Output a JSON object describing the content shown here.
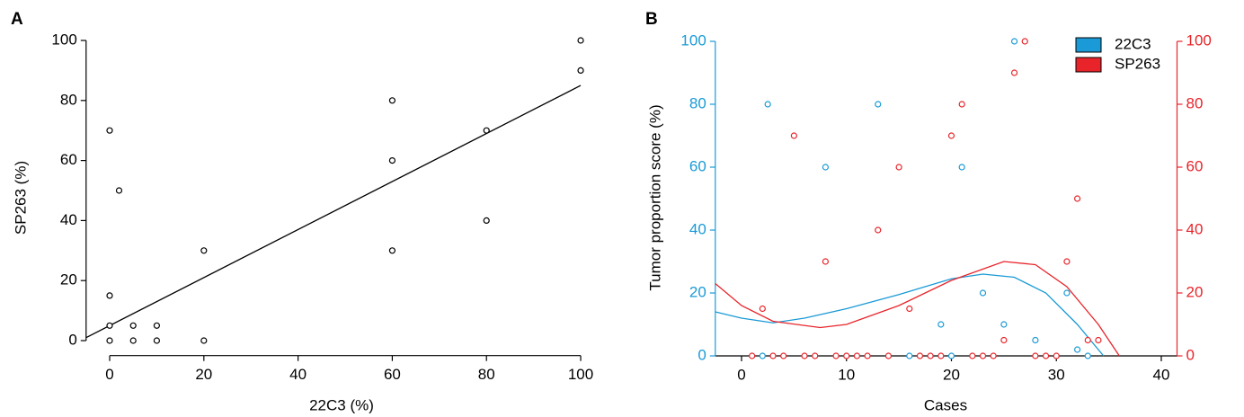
{
  "chart_data": [
    {
      "type": "scatter",
      "panel_label": "A",
      "x_label": "22C3 (%)",
      "y_label": "SP263 (%)",
      "x": [
        0,
        0,
        0,
        0,
        2,
        5,
        5,
        10,
        10,
        20,
        20,
        60,
        60,
        60,
        80,
        80,
        100,
        100
      ],
      "values": [
        0,
        5,
        15,
        70,
        50,
        5,
        0,
        5,
        0,
        30,
        0,
        80,
        60,
        30,
        70,
        40,
        100,
        90
      ],
      "color": "#000000",
      "trendline": {
        "x": [
          -5,
          100
        ],
        "values": [
          1,
          85
        ],
        "color": "#000000"
      },
      "xlim": [
        -5,
        104
      ],
      "ylim": [
        -5,
        100
      ],
      "xticks": [
        0,
        20,
        40,
        60,
        80,
        100
      ],
      "yticks": [
        0,
        20,
        40,
        60,
        80,
        100
      ]
    },
    {
      "type": "scatter",
      "panel_label": "B",
      "x_label": "Cases",
      "y_label": "Tumor proportion score (%)",
      "series": [
        {
          "name": "22C3",
          "color": "#1a9ad6",
          "x": [
            2,
            2.5,
            8,
            13,
            16,
            19,
            20,
            21,
            23,
            25,
            26,
            28,
            31,
            32,
            33
          ],
          "values": [
            0,
            80,
            60,
            80,
            0,
            10,
            0,
            60,
            20,
            10,
            100,
            5,
            20,
            2,
            0
          ],
          "trendline": {
            "x": [
              -2.5,
              0,
              3,
              6,
              10,
              15,
              20,
              23,
              26,
              29,
              32,
              34.5
            ],
            "values": [
              14,
              12,
              10.5,
              12,
              15,
              19.5,
              24.5,
              26,
              25,
              20,
              10,
              0
            ]
          }
        },
        {
          "name": "SP263",
          "color": "#e8242a",
          "axis": "y2",
          "x": [
            1,
            2,
            3,
            4,
            5,
            6,
            7,
            8,
            9,
            10,
            11,
            12,
            13,
            14,
            15,
            16,
            17,
            18,
            19,
            20,
            21,
            22,
            23,
            24,
            25,
            26,
            27,
            28,
            29,
            30,
            31,
            32,
            33,
            34
          ],
          "values": [
            0,
            15,
            0,
            0,
            70,
            0,
            0,
            30,
            0,
            0,
            0,
            0,
            40,
            0,
            60,
            15,
            0,
            0,
            0,
            70,
            80,
            0,
            0,
            0,
            5,
            90,
            100,
            0,
            0,
            0,
            30,
            50,
            5,
            5
          ],
          "trendline": {
            "x": [
              -2.5,
              0,
              3,
              7.5,
              10,
              15,
              20,
              25,
              28,
              31,
              34,
              36
            ],
            "values": [
              23,
              16,
              11,
              9,
              10,
              16,
              24,
              30,
              29,
              22,
              10,
              0
            ]
          }
        }
      ],
      "legend": "upper right",
      "xlim": [
        -2.5,
        41.5
      ],
      "ylim": [
        0,
        100
      ],
      "y2lim": [
        0,
        100
      ],
      "xticks": [
        0,
        10,
        20,
        30,
        40
      ],
      "yticks": [
        0,
        20,
        40,
        60,
        80,
        100
      ],
      "y2ticks": [
        0,
        20,
        40,
        60,
        80,
        100
      ]
    }
  ]
}
